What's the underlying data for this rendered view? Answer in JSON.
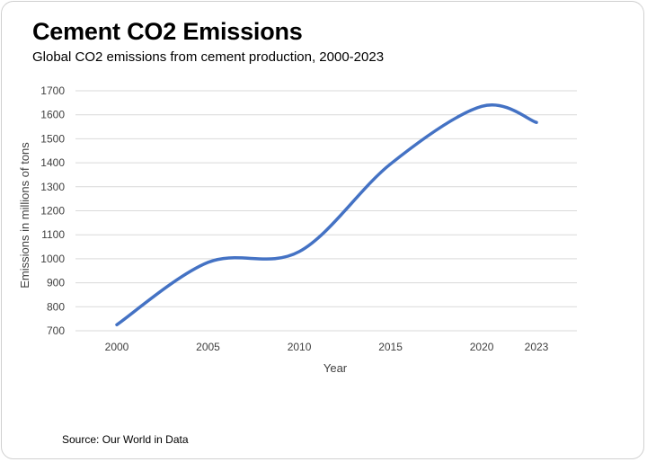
{
  "header": {
    "title": "Cement CO2 Emissions",
    "subtitle": "Global CO2 emissions from cement production, 2000-2023"
  },
  "footer": {
    "source": "Source: Our World in Data"
  },
  "chart_data": {
    "type": "line",
    "title": "Cement CO2 Emissions",
    "subtitle": "Global CO2 emissions from cement production, 2000-2023",
    "xlabel": "Year",
    "ylabel": "Emissions in millions of tons",
    "categories": [
      "2000",
      "2005",
      "2010",
      "2015",
      "2020",
      "2023"
    ],
    "series": [
      {
        "values": [
          725,
          985,
          1030,
          1395,
          1635,
          1568
        ]
      }
    ],
    "ylim": [
      700,
      1700
    ],
    "yticks": [
      700,
      800,
      900,
      1000,
      1100,
      1200,
      1300,
      1400,
      1500,
      1600,
      1700
    ],
    "grid": true,
    "legend": "none",
    "smooth": true,
    "line_color": "#4472C4",
    "grid_color": "#d9d9d9"
  }
}
